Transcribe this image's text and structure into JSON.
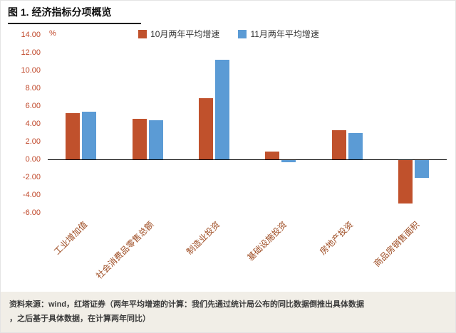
{
  "title": "图 1. 经济指标分项概览",
  "chart_data": {
    "type": "bar",
    "categories": [
      "工业增加值",
      "社会消费品零售总额",
      "制造业投资",
      "基础设施投资",
      "房地产投资",
      "商品房销售面积"
    ],
    "series": [
      {
        "name": "10月两年平均增速",
        "color": "#c0512c",
        "values": [
          5.2,
          4.6,
          6.9,
          0.9,
          3.3,
          -4.9
        ]
      },
      {
        "name": "11月两年平均增速",
        "color": "#5b9bd5",
        "values": [
          5.4,
          4.4,
          11.2,
          -0.2,
          3.0,
          -2.0
        ]
      }
    ],
    "ylabel": "%",
    "ylim": [
      -6,
      14
    ],
    "ytick_step": 2,
    "ytick_decimals": 2,
    "grid": false,
    "legend_position": "top",
    "tick_label_color": "#c0482a",
    "category_label_color": "#9d4a20",
    "axis_line_color": "#000000"
  },
  "footer": {
    "source_line1": "资料来源：wind，红塔证券（两年平均增速的计算：我们先通过统计局公布的同比数据倒推出具体数据",
    "source_line2": "，之后基于具体数据，在计算两年同比）"
  }
}
